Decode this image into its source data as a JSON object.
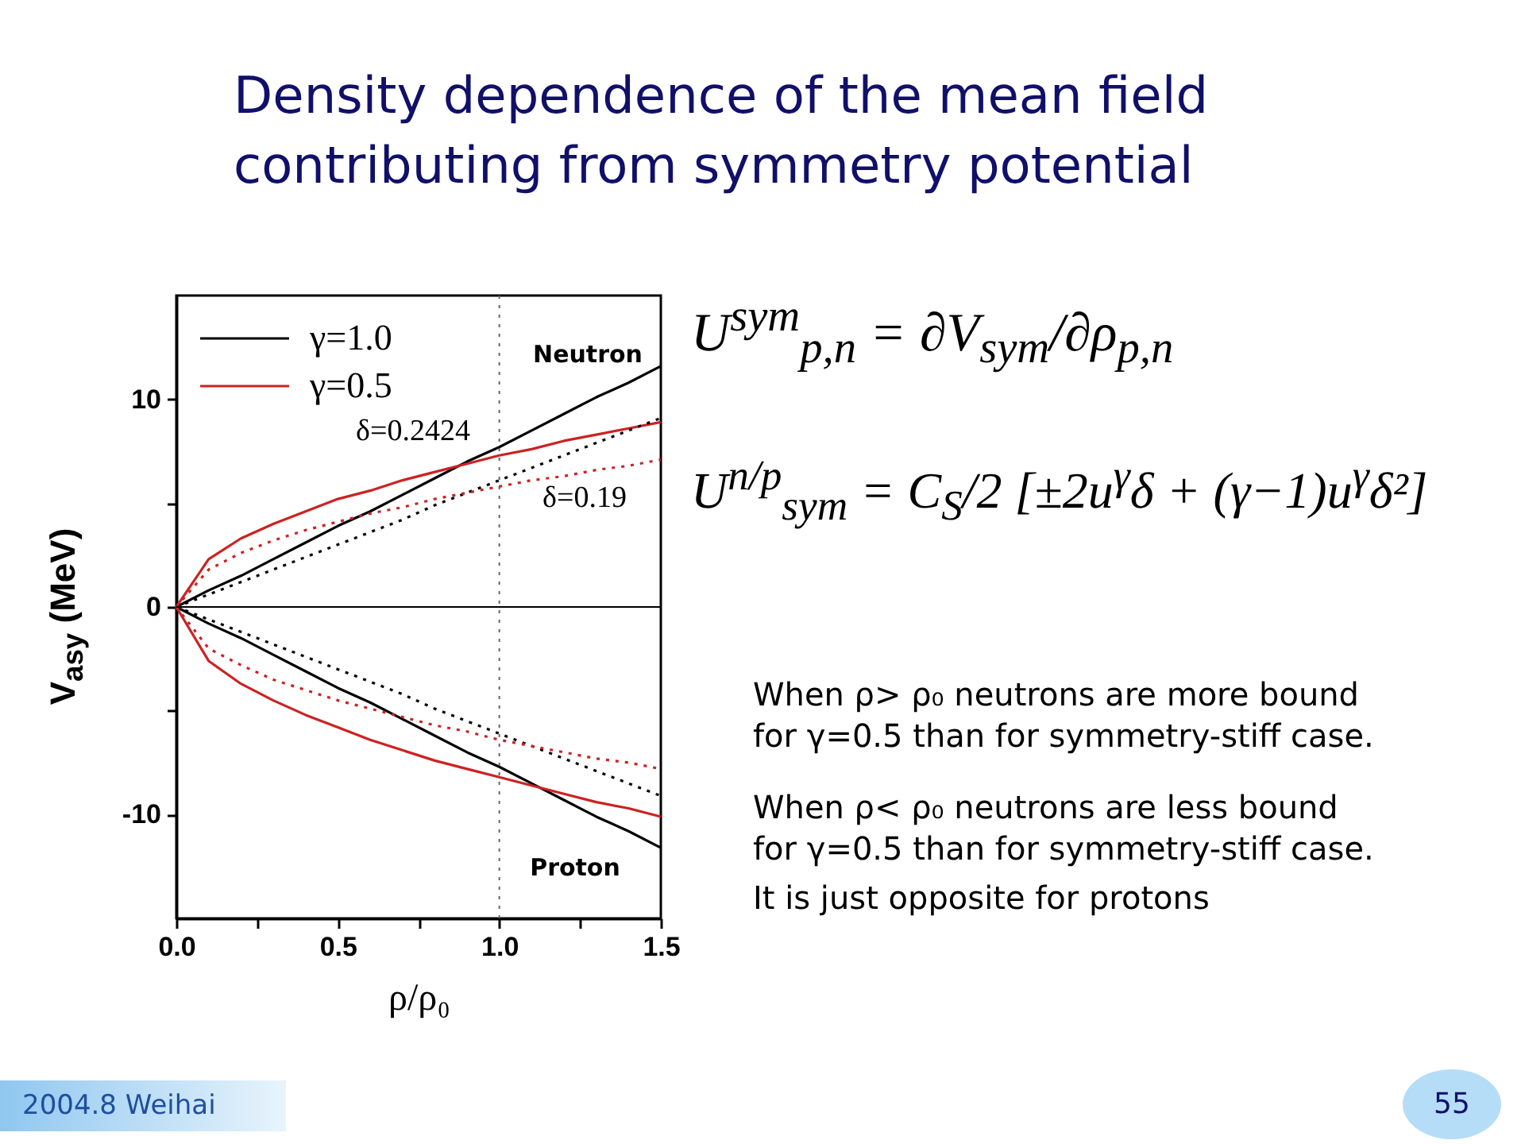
{
  "chart_data": {
    "type": "line",
    "title": "Density dependence of the mean field contributing from symmetry potential",
    "xlabel": "ρ/ρ₀",
    "ylabel": "V$_{asy}$ (MeV)",
    "xlim": [
      0,
      1.5
    ],
    "ylim": [
      -15,
      15
    ],
    "xticks": [
      {
        "value": 0,
        "label": "0.0"
      },
      {
        "value": 0.25,
        "label": null
      },
      0.5,
      {
        "value": 0.75,
        "label": null
      },
      {
        "value": 1,
        "label": "1.0"
      },
      {
        "value": 1.25,
        "label": null
      },
      1.5
    ],
    "yticks": [
      -10,
      {
        "value": -5,
        "label": null
      },
      0,
      {
        "value": 5,
        "label": null
      },
      10
    ],
    "x": [
      0,
      0.1,
      0.2,
      0.3,
      0.4,
      0.5,
      0.6,
      0.7,
      0.8,
      0.9,
      1.0,
      1.1,
      1.2,
      1.3,
      1.4,
      1.5
    ],
    "series": [
      {
        "name": "γ=1.0",
        "color": "#000000",
        "line_style": "solid",
        "values": [
          0,
          0.8,
          1.5,
          2.3,
          3.1,
          3.9,
          4.6,
          5.4,
          6.2,
          7.0,
          7.7,
          8.5,
          9.3,
          10.1,
          10.8,
          11.6
        ]
      },
      {
        "name": "γ=0.5",
        "color": "#cc2222",
        "line_style": "solid",
        "values": [
          0,
          2.3,
          3.3,
          4.0,
          4.6,
          5.2,
          5.6,
          6.1,
          6.5,
          6.9,
          7.3,
          7.6,
          8.0,
          8.3,
          8.6,
          8.9
        ]
      },
      {
        "color": "#000000",
        "line_style": "solid",
        "values": [
          0,
          -0.8,
          -1.5,
          -2.3,
          -3.1,
          -3.9,
          -4.6,
          -5.4,
          -6.2,
          -7.0,
          -7.7,
          -8.5,
          -9.3,
          -10.1,
          -10.8,
          -11.6
        ]
      },
      {
        "color": "#cc2222",
        "line_style": "solid",
        "values": [
          0,
          -2.6,
          -3.7,
          -4.5,
          -5.2,
          -5.8,
          -6.4,
          -6.9,
          -7.4,
          -7.8,
          -8.2,
          -8.6,
          -9.0,
          -9.4,
          -9.7,
          -10.1
        ]
      },
      {
        "color": "#000000",
        "line_style": "dotted",
        "values": [
          0,
          0.6,
          1.2,
          1.8,
          2.4,
          3.0,
          3.6,
          4.2,
          4.9,
          5.5,
          6.1,
          6.7,
          7.3,
          7.9,
          8.5,
          9.1
        ]
      },
      {
        "color": "#cc2222",
        "line_style": "dotted",
        "values": [
          0,
          1.8,
          2.6,
          3.2,
          3.7,
          4.1,
          4.5,
          4.8,
          5.2,
          5.5,
          5.8,
          6.1,
          6.3,
          6.6,
          6.8,
          7.1
        ]
      },
      {
        "color": "#000000",
        "line_style": "dotted",
        "values": [
          0,
          -0.6,
          -1.2,
          -1.8,
          -2.4,
          -3.0,
          -3.6,
          -4.2,
          -4.9,
          -5.5,
          -6.1,
          -6.7,
          -7.3,
          -7.9,
          -8.5,
          -9.1
        ]
      },
      {
        "color": "#cc2222",
        "line_style": "dotted",
        "values": [
          0,
          -2.0,
          -2.8,
          -3.5,
          -4.0,
          -4.5,
          -4.9,
          -5.3,
          -5.7,
          -6.0,
          -6.4,
          -6.7,
          -7.0,
          -7.3,
          -7.5,
          -7.8
        ]
      }
    ],
    "ref_lines": [
      {
        "axis": "y",
        "value": 0,
        "color": "#000000",
        "line_style": "solid"
      },
      {
        "axis": "x",
        "value": 1,
        "color": "#666666",
        "line_style": "dotted"
      }
    ],
    "legend": "top left",
    "annotations": [
      "Neutron",
      "Proton",
      "δ=0.2424",
      "δ=0.19",
      "U$^{sym}$$_{p,n}$ = ∂V$_{sym}$/∂ρ$_{p,n}$",
      "U$^{n/p}$$_{sym}$ = C$_{S}$/2 [±2u$^{γ}$δ + (γ−1)u$^{γ}$δ²]",
      "When ρ> ρ₀ neutrons are more bound for γ=0.5 than for symmetry-stiff case.",
      "When ρ< ρ₀ neutrons are less bound for γ=0.5 than for symmetry-stiff case.",
      "It is just opposite for protons",
      "2004.8 Weihai",
      "55"
    ]
  }
}
